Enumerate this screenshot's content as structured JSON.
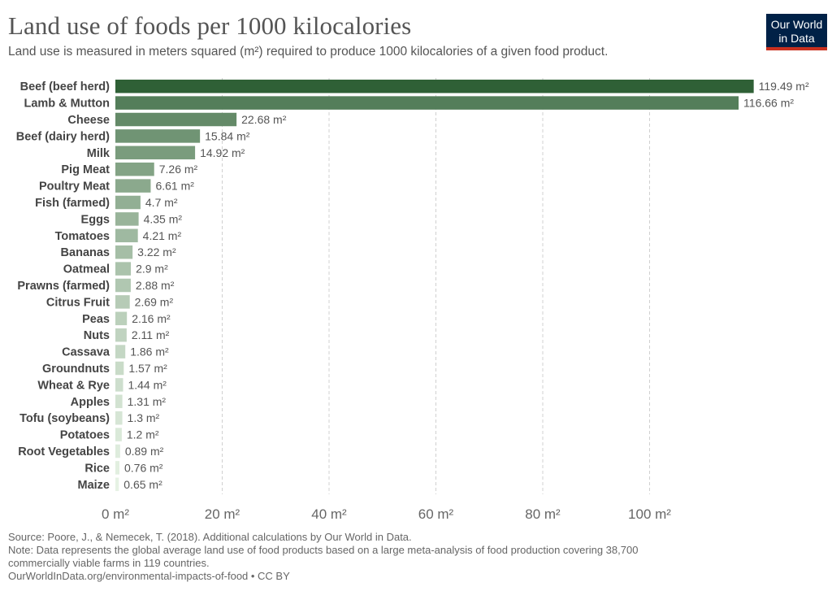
{
  "header": {
    "title": "Land use of foods per 1000 kilocalories",
    "subtitle": "Land use is measured in meters squared (m²) required to produce 1000 kilocalories of a given food product."
  },
  "logo": {
    "line1": "Our World",
    "line2": "in Data"
  },
  "colors": {
    "bar_dark": "#2f6036",
    "bar_light": "#e6f2e4",
    "logo_bg": "#002147",
    "logo_accent": "#c9301f"
  },
  "chart_data": {
    "type": "bar",
    "orientation": "horizontal",
    "title": "Land use of foods per 1000 kilocalories",
    "subtitle": "Land use is measured in meters squared (m²) required to produce 1000 kilocalories of a given food product.",
    "unit": "m²",
    "categories": [
      "Beef (beef herd)",
      "Lamb & Mutton",
      "Cheese",
      "Beef (dairy herd)",
      "Milk",
      "Pig Meat",
      "Poultry Meat",
      "Fish (farmed)",
      "Eggs",
      "Tomatoes",
      "Bananas",
      "Oatmeal",
      "Prawns (farmed)",
      "Citrus Fruit",
      "Peas",
      "Nuts",
      "Cassava",
      "Groundnuts",
      "Wheat & Rye",
      "Apples",
      "Tofu (soybeans)",
      "Potatoes",
      "Root Vegetables",
      "Rice",
      "Maize"
    ],
    "values": [
      119.49,
      116.66,
      22.68,
      15.84,
      14.92,
      7.26,
      6.61,
      4.7,
      4.35,
      4.21,
      3.22,
      2.9,
      2.88,
      2.69,
      2.16,
      2.11,
      1.86,
      1.57,
      1.44,
      1.31,
      1.3,
      1.2,
      0.89,
      0.76,
      0.65
    ],
    "value_labels": [
      "119.49 m²",
      "116.66 m²",
      "22.68 m²",
      "15.84 m²",
      "14.92 m²",
      "7.26 m²",
      "6.61 m²",
      "4.7 m²",
      "4.35 m²",
      "4.21 m²",
      "3.22 m²",
      "2.9 m²",
      "2.88 m²",
      "2.69 m²",
      "2.16 m²",
      "2.11 m²",
      "1.86 m²",
      "1.57 m²",
      "1.44 m²",
      "1.31 m²",
      "1.3 m²",
      "1.2 m²",
      "0.89 m²",
      "0.76 m²",
      "0.65 m²"
    ],
    "xticks": [
      0,
      20,
      40,
      60,
      80,
      100
    ],
    "xtick_labels": [
      "0 m²",
      "20 m²",
      "40 m²",
      "60 m²",
      "80 m²",
      "100 m²"
    ],
    "xlim": [
      0,
      120
    ],
    "grid": true
  },
  "footer": {
    "source": "Source: Poore, J., & Nemecek, T. (2018). Additional calculations by Our World in Data.",
    "note": "Note: Data represents the global average land use of food products based on a large meta-analysis of food production covering 38,700\ncommercially viable farms in 119 countries.",
    "url": "OurWorldInData.org/environmental-impacts-of-food • CC BY"
  }
}
